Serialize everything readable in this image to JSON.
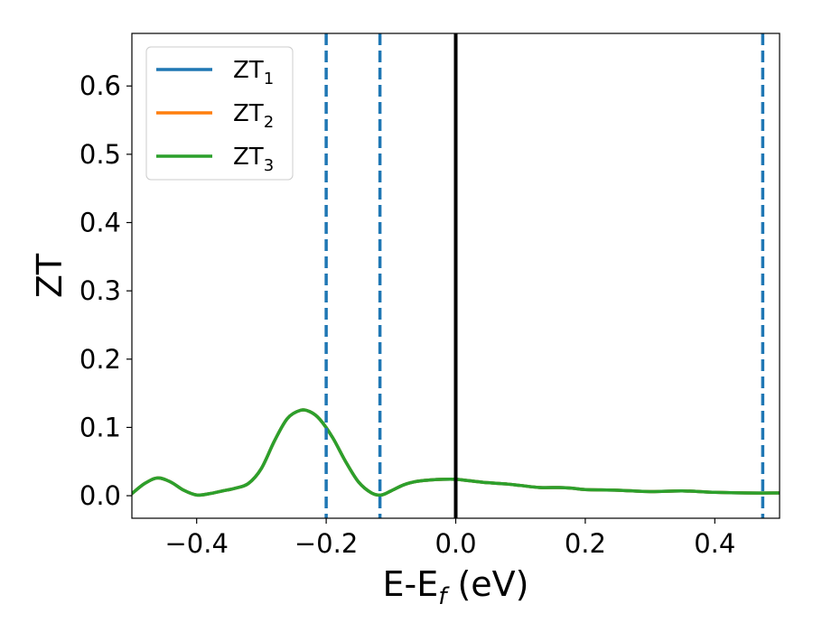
{
  "chart_data": {
    "type": "line",
    "xlabel": "E-E",
    "xlabel_sub": "f",
    "xlabel_unit": " (eV)",
    "ylabel": "ZT",
    "xlim": [
      -0.5,
      0.5
    ],
    "ylim": [
      -0.033,
      0.677
    ],
    "xticks": [
      -0.4,
      -0.2,
      0.0,
      0.2,
      0.4
    ],
    "xtick_labels": [
      "−0.4",
      "−0.2",
      "0.0",
      "0.2",
      "0.4"
    ],
    "yticks": [
      0.0,
      0.1,
      0.2,
      0.3,
      0.4,
      0.5,
      0.6
    ],
    "ytick_labels": [
      "0.0",
      "0.1",
      "0.2",
      "0.3",
      "0.4",
      "0.5",
      "0.6"
    ],
    "grid": false,
    "legend_position": "top-left",
    "colors": {
      "series1": "#1f77b4",
      "series2": "#ff7f0e",
      "series3": "#2ca02c",
      "fermi": "#000000"
    },
    "series": [
      {
        "name": "ZT",
        "sub": "1",
        "x": [
          -0.5,
          -0.48,
          -0.46,
          -0.44,
          -0.42,
          -0.4,
          -0.38,
          -0.36,
          -0.34,
          -0.32,
          -0.3,
          -0.28,
          -0.26,
          -0.24,
          -0.225,
          -0.21,
          -0.19,
          -0.17,
          -0.15,
          -0.13,
          -0.115,
          -0.1,
          -0.08,
          -0.06,
          -0.04,
          -0.02,
          0.0,
          0.02,
          0.05,
          0.08,
          0.1,
          0.13,
          0.16,
          0.18,
          0.2,
          0.25,
          0.3,
          0.35,
          0.4,
          0.45,
          0.5
        ],
        "y": [
          0.003,
          0.018,
          0.026,
          0.02,
          0.008,
          0.001,
          0.003,
          0.007,
          0.011,
          0.018,
          0.04,
          0.08,
          0.113,
          0.125,
          0.123,
          0.112,
          0.085,
          0.05,
          0.02,
          0.004,
          0.001,
          0.007,
          0.016,
          0.021,
          0.023,
          0.024,
          0.024,
          0.022,
          0.019,
          0.017,
          0.015,
          0.012,
          0.012,
          0.011,
          0.009,
          0.008,
          0.006,
          0.007,
          0.005,
          0.004,
          0.004
        ]
      },
      {
        "name": "ZT",
        "sub": "2",
        "x": [
          -0.5,
          -0.48,
          -0.46,
          -0.44,
          -0.42,
          -0.4,
          -0.38,
          -0.36,
          -0.34,
          -0.32,
          -0.3,
          -0.28,
          -0.26,
          -0.24,
          -0.225,
          -0.21,
          -0.19,
          -0.17,
          -0.15,
          -0.13,
          -0.115,
          -0.1,
          -0.08,
          -0.06,
          -0.04,
          -0.02,
          0.0,
          0.02,
          0.05,
          0.08,
          0.1,
          0.13,
          0.16,
          0.18,
          0.2,
          0.25,
          0.3,
          0.35,
          0.4,
          0.45,
          0.5
        ],
        "y": [
          0.003,
          0.018,
          0.026,
          0.02,
          0.008,
          0.001,
          0.003,
          0.007,
          0.011,
          0.018,
          0.04,
          0.08,
          0.113,
          0.125,
          0.123,
          0.112,
          0.085,
          0.05,
          0.02,
          0.004,
          0.001,
          0.007,
          0.016,
          0.021,
          0.023,
          0.024,
          0.024,
          0.022,
          0.019,
          0.017,
          0.015,
          0.012,
          0.012,
          0.011,
          0.009,
          0.008,
          0.006,
          0.007,
          0.005,
          0.004,
          0.004
        ]
      },
      {
        "name": "ZT",
        "sub": "3",
        "x": [
          -0.5,
          -0.48,
          -0.46,
          -0.44,
          -0.42,
          -0.4,
          -0.38,
          -0.36,
          -0.34,
          -0.32,
          -0.3,
          -0.28,
          -0.26,
          -0.24,
          -0.225,
          -0.21,
          -0.19,
          -0.17,
          -0.15,
          -0.13,
          -0.115,
          -0.1,
          -0.08,
          -0.06,
          -0.04,
          -0.02,
          0.0,
          0.02,
          0.05,
          0.08,
          0.1,
          0.13,
          0.16,
          0.18,
          0.2,
          0.25,
          0.3,
          0.35,
          0.4,
          0.45,
          0.5
        ],
        "y": [
          0.003,
          0.018,
          0.026,
          0.02,
          0.008,
          0.001,
          0.003,
          0.007,
          0.011,
          0.018,
          0.04,
          0.08,
          0.113,
          0.125,
          0.123,
          0.112,
          0.085,
          0.05,
          0.02,
          0.004,
          0.001,
          0.007,
          0.016,
          0.021,
          0.023,
          0.024,
          0.024,
          0.022,
          0.019,
          0.017,
          0.015,
          0.012,
          0.012,
          0.011,
          0.009,
          0.008,
          0.006,
          0.007,
          0.005,
          0.004,
          0.004
        ]
      }
    ],
    "vlines": [
      {
        "x": 0.0,
        "style": "solid",
        "color": "#000000"
      },
      {
        "x": -0.2,
        "style": "dashed",
        "color": "#1f77b4"
      },
      {
        "x": -0.117,
        "style": "dashed",
        "color": "#1f77b4"
      },
      {
        "x": 0.474,
        "style": "dashed",
        "color": "#1f77b4"
      }
    ]
  }
}
